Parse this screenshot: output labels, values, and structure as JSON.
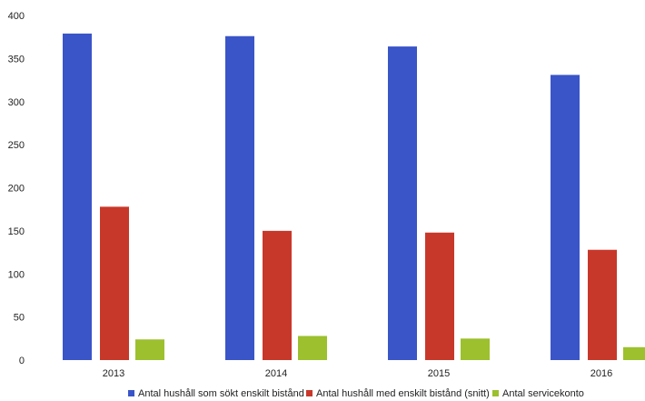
{
  "chart_data": {
    "type": "bar",
    "title": "",
    "xlabel": "",
    "ylabel": "",
    "categories": [
      "2013",
      "2014",
      "2015",
      "2016"
    ],
    "ylim": [
      0,
      400
    ],
    "yticks": [
      0,
      50,
      100,
      150,
      200,
      250,
      300,
      350,
      400
    ],
    "grid": false,
    "legend_position": "bottom",
    "series": [
      {
        "name": "Antal hushåll som sökt enskilt bistånd",
        "color": "#3a55c8",
        "values": [
          379,
          376,
          364,
          331
        ]
      },
      {
        "name": "Antal hushåll med enskilt bistånd (snitt)",
        "color": "#c8382a",
        "values": [
          178,
          150,
          148,
          128
        ]
      },
      {
        "name": "Antal servicekonto",
        "color": "#9cc02e",
        "values": [
          24,
          28,
          25,
          15
        ]
      }
    ]
  }
}
